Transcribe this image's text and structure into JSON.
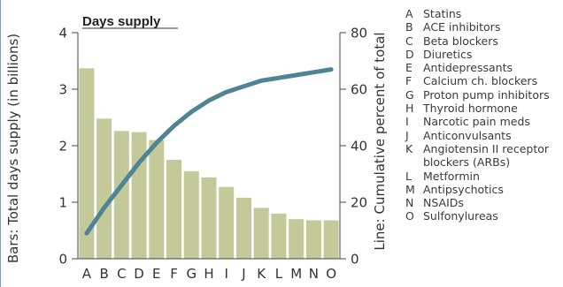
{
  "chart_data": {
    "type": "bar",
    "title": "Days supply",
    "categories": [
      "A",
      "B",
      "C",
      "D",
      "E",
      "F",
      "G",
      "H",
      "I",
      "J",
      "K",
      "L",
      "M",
      "N",
      "O"
    ],
    "series": [
      {
        "name": "Bars: Total days supply (in billions)",
        "type": "bar",
        "axis": "left",
        "color": "#c4c99a",
        "values": [
          3.37,
          2.48,
          2.26,
          2.24,
          2.1,
          1.75,
          1.55,
          1.44,
          1.27,
          1.08,
          0.9,
          0.8,
          0.7,
          0.68,
          0.68
        ]
      },
      {
        "name": "Line: Cumulative percent of total",
        "type": "line",
        "axis": "right",
        "color": "#4e8494",
        "values": [
          9,
          18,
          26,
          34,
          41,
          47,
          52,
          56,
          59,
          61,
          63,
          64,
          65,
          66,
          67
        ]
      }
    ],
    "ylabel": "Bars: Total days supply (in billions)",
    "y2label": "Line: Cumulative percent of total",
    "ylim": [
      0,
      4
    ],
    "y2lim": [
      0,
      80
    ],
    "yticks": [
      "0",
      "1",
      "2",
      "3",
      "4"
    ],
    "y2ticks": [
      "0",
      "20",
      "40",
      "60",
      "80"
    ],
    "grid": false
  },
  "legend": [
    {
      "letter": "A",
      "text": "Statins"
    },
    {
      "letter": "B",
      "text": "ACE inhibitors"
    },
    {
      "letter": "C",
      "text": "Beta blockers"
    },
    {
      "letter": "D",
      "text": "Diuretics"
    },
    {
      "letter": "E",
      "text": "Antidepressants"
    },
    {
      "letter": "F",
      "text": "Calcium ch. blockers"
    },
    {
      "letter": "G",
      "text": "Proton pump inhibitors"
    },
    {
      "letter": "H",
      "text": "Thyroid hormone"
    },
    {
      "letter": "I",
      "text": "Narcotic pain meds"
    },
    {
      "letter": "J",
      "text": "Anticonvulsants"
    },
    {
      "letter": "K",
      "text": "Angiotensin II receptor blockers (ARBs)"
    },
    {
      "letter": "L",
      "text": "Metformin"
    },
    {
      "letter": "M",
      "text": "Antipsychotics"
    },
    {
      "letter": "N",
      "text": "NSAIDs"
    },
    {
      "letter": "O",
      "text": "Sulfonylureas"
    }
  ]
}
